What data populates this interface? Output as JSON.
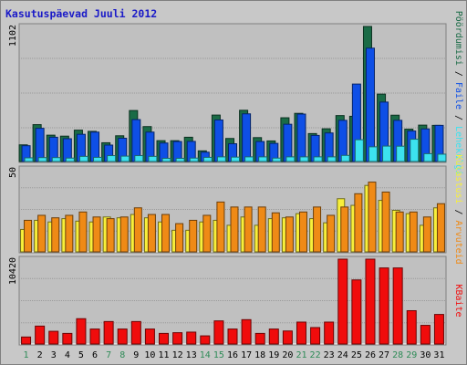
{
  "title": "Kasutuspäevad Juuli 2012",
  "colors": {
    "background": "#c8c8c8",
    "panel": "#c0c0c0",
    "weekday_label": "#000000",
    "weekend_label": "#2e8b57",
    "pages": "#1a6b46",
    "files": "#0e4fe6",
    "hits": "#3ce2ef",
    "visits": "#ef8a16",
    "sites": "#f8ef3a",
    "kbytes": "#f00c0c"
  },
  "chart_data": [
    {
      "type": "bar",
      "panel": "top",
      "ylim": [
        0,
        1102
      ],
      "y_tick_label": "1102",
      "x": [
        "1",
        "2",
        "3",
        "4",
        "5",
        "6",
        "7",
        "8",
        "9",
        "10",
        "11",
        "12",
        "13",
        "14",
        "15",
        "16",
        "17",
        "18",
        "19",
        "20",
        "21",
        "22",
        "23",
        "24",
        "25",
        "26",
        "27",
        "28",
        "29",
        "30",
        "31"
      ],
      "weekend_days": [
        "1",
        "7",
        "8",
        "14",
        "15",
        "21",
        "22",
        "28",
        "29"
      ],
      "legend_text": [
        "Pöördumisi",
        "/",
        "Faile",
        "/",
        "Lehekülgi"
      ],
      "series": [
        {
          "name": "Pöördumisi",
          "color": "#1a6b46",
          "values": [
            136,
            301,
            215,
            207,
            256,
            246,
            153,
            210,
            416,
            285,
            170,
            170,
            198,
            87,
            379,
            188,
            418,
            195,
            168,
            357,
            393,
            228,
            267,
            375,
            369,
            1102,
            550,
            378,
            264,
            297,
            295
          ]
        },
        {
          "name": "Faile",
          "color": "#0e4fe6",
          "values": [
            129,
            271,
            198,
            186,
            222,
            240,
            134,
            190,
            342,
            240,
            151,
            163,
            164,
            76,
            339,
            145,
            389,
            163,
            148,
            304,
            387,
            213,
            233,
            336,
            632,
            925,
            485,
            336,
            249,
            266,
            295
          ]
        },
        {
          "name": "Lehekülgi",
          "color": "#3ce2ef",
          "values": [
            30,
            32,
            32,
            28,
            42,
            34,
            48,
            44,
            48,
            42,
            26,
            26,
            28,
            34,
            38,
            36,
            38,
            38,
            28,
            38,
            38,
            38,
            38,
            50,
            178,
            120,
            126,
            125,
            182,
            64,
            60
          ]
        }
      ]
    },
    {
      "type": "bar",
      "panel": "middle",
      "ylim": [
        0,
        50
      ],
      "y_tick_label": "50",
      "x": [
        "1",
        "2",
        "3",
        "4",
        "5",
        "6",
        "7",
        "8",
        "9",
        "10",
        "11",
        "12",
        "13",
        "14",
        "15",
        "16",
        "17",
        "18",
        "19",
        "20",
        "21",
        "22",
        "23",
        "24",
        "25",
        "26",
        "27",
        "28",
        "29",
        "30",
        "31"
      ],
      "legend_text": [
        "Külastusi",
        "/",
        "Arvuteid"
      ],
      "series": [
        {
          "name": "Külastusi",
          "color": "#f8ef3a",
          "values": [
            13.5,
            19,
            18,
            20,
            18.5,
            18,
            21,
            20.5,
            22.5,
            20.5,
            18,
            13,
            13,
            18,
            19,
            16,
            21,
            16,
            20,
            20.5,
            23,
            20,
            17.5,
            32,
            28,
            40,
            31,
            25,
            23,
            16,
            26.5
          ]
        },
        {
          "name": "Arvuteid",
          "color": "#ef8a16",
          "values": [
            19,
            22,
            20.5,
            22,
            24,
            21,
            20,
            21,
            26.5,
            22.5,
            22.5,
            17,
            19,
            22,
            30,
            27,
            27,
            27,
            23.5,
            21,
            24,
            27,
            22,
            27,
            35,
            42,
            36,
            24,
            24,
            21,
            29
          ]
        }
      ]
    },
    {
      "type": "bar",
      "panel": "bottom",
      "ylim": [
        0,
        10420
      ],
      "y_tick_label": "10420",
      "x": [
        "1",
        "2",
        "3",
        "4",
        "5",
        "6",
        "7",
        "8",
        "9",
        "10",
        "11",
        "12",
        "13",
        "14",
        "15",
        "16",
        "17",
        "18",
        "19",
        "20",
        "21",
        "22",
        "23",
        "24",
        "25",
        "26",
        "27",
        "28",
        "29",
        "30",
        "31"
      ],
      "legend_text": [
        "KBaite"
      ],
      "series": [
        {
          "name": "KBaite",
          "color": "#f00c0c",
          "values": [
            860,
            2200,
            1560,
            1300,
            3110,
            1840,
            2760,
            1840,
            2760,
            1840,
            1300,
            1390,
            1460,
            1000,
            2840,
            1840,
            2990,
            1300,
            1840,
            1600,
            2690,
            2020,
            2690,
            10420,
            7870,
            10420,
            9340,
            9340,
            4090,
            2290,
            3630
          ]
        }
      ]
    }
  ]
}
